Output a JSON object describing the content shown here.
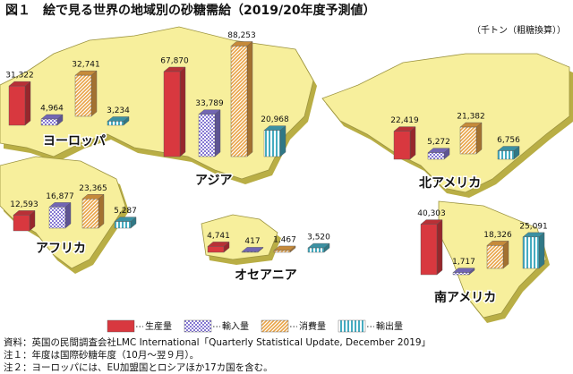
{
  "chart_data": {
    "type": "bar",
    "title": "図１　絵で見る世界の地域別の砂糖需給（2019/20年度予測値）",
    "unit_note": "（千トン（粗糖換算））",
    "categories": [
      "ヨーロッパ",
      "アジア",
      "アフリカ",
      "オセアニア",
      "北アメリカ",
      "南アメリカ"
    ],
    "series": [
      {
        "name": "生産量",
        "color": "#d8383f",
        "values": [
          31322,
          67870,
          12593,
          4741,
          22419,
          40303
        ],
        "value_labels": [
          "31,322",
          "67,870",
          "12,593",
          "4,741",
          "22,419",
          "40,303"
        ]
      },
      {
        "name": "輸入量",
        "color": "#8678d2",
        "values": [
          4964,
          33789,
          16877,
          417,
          5272,
          1717
        ],
        "value_labels": [
          "4,964",
          "33,789",
          "16,877",
          "417",
          "5,272",
          "1,717"
        ]
      },
      {
        "name": "消費量",
        "color": "#e9a244",
        "values": [
          32741,
          88253,
          23365,
          1467,
          21382,
          18326
        ],
        "value_labels": [
          "32,741",
          "88,253",
          "23,365",
          "1,467",
          "21,382",
          "18,326"
        ]
      },
      {
        "name": "輸出量",
        "color": "#45abc0",
        "values": [
          3234,
          20968,
          5287,
          3520,
          6756,
          25091
        ],
        "value_labels": [
          "3,234",
          "20,968",
          "5,287",
          "3,520",
          "6,756",
          "25,091"
        ]
      }
    ],
    "notes": [
      "資料：英国の民間調査会社LMC International「Quarterly Statistical Update, December 2019」",
      "注１：年度は国際砂糖年度（10月～翌９月）。",
      "注２：ヨーロッパには、EU加盟国とロシアほか17カ国を含む。"
    ]
  }
}
